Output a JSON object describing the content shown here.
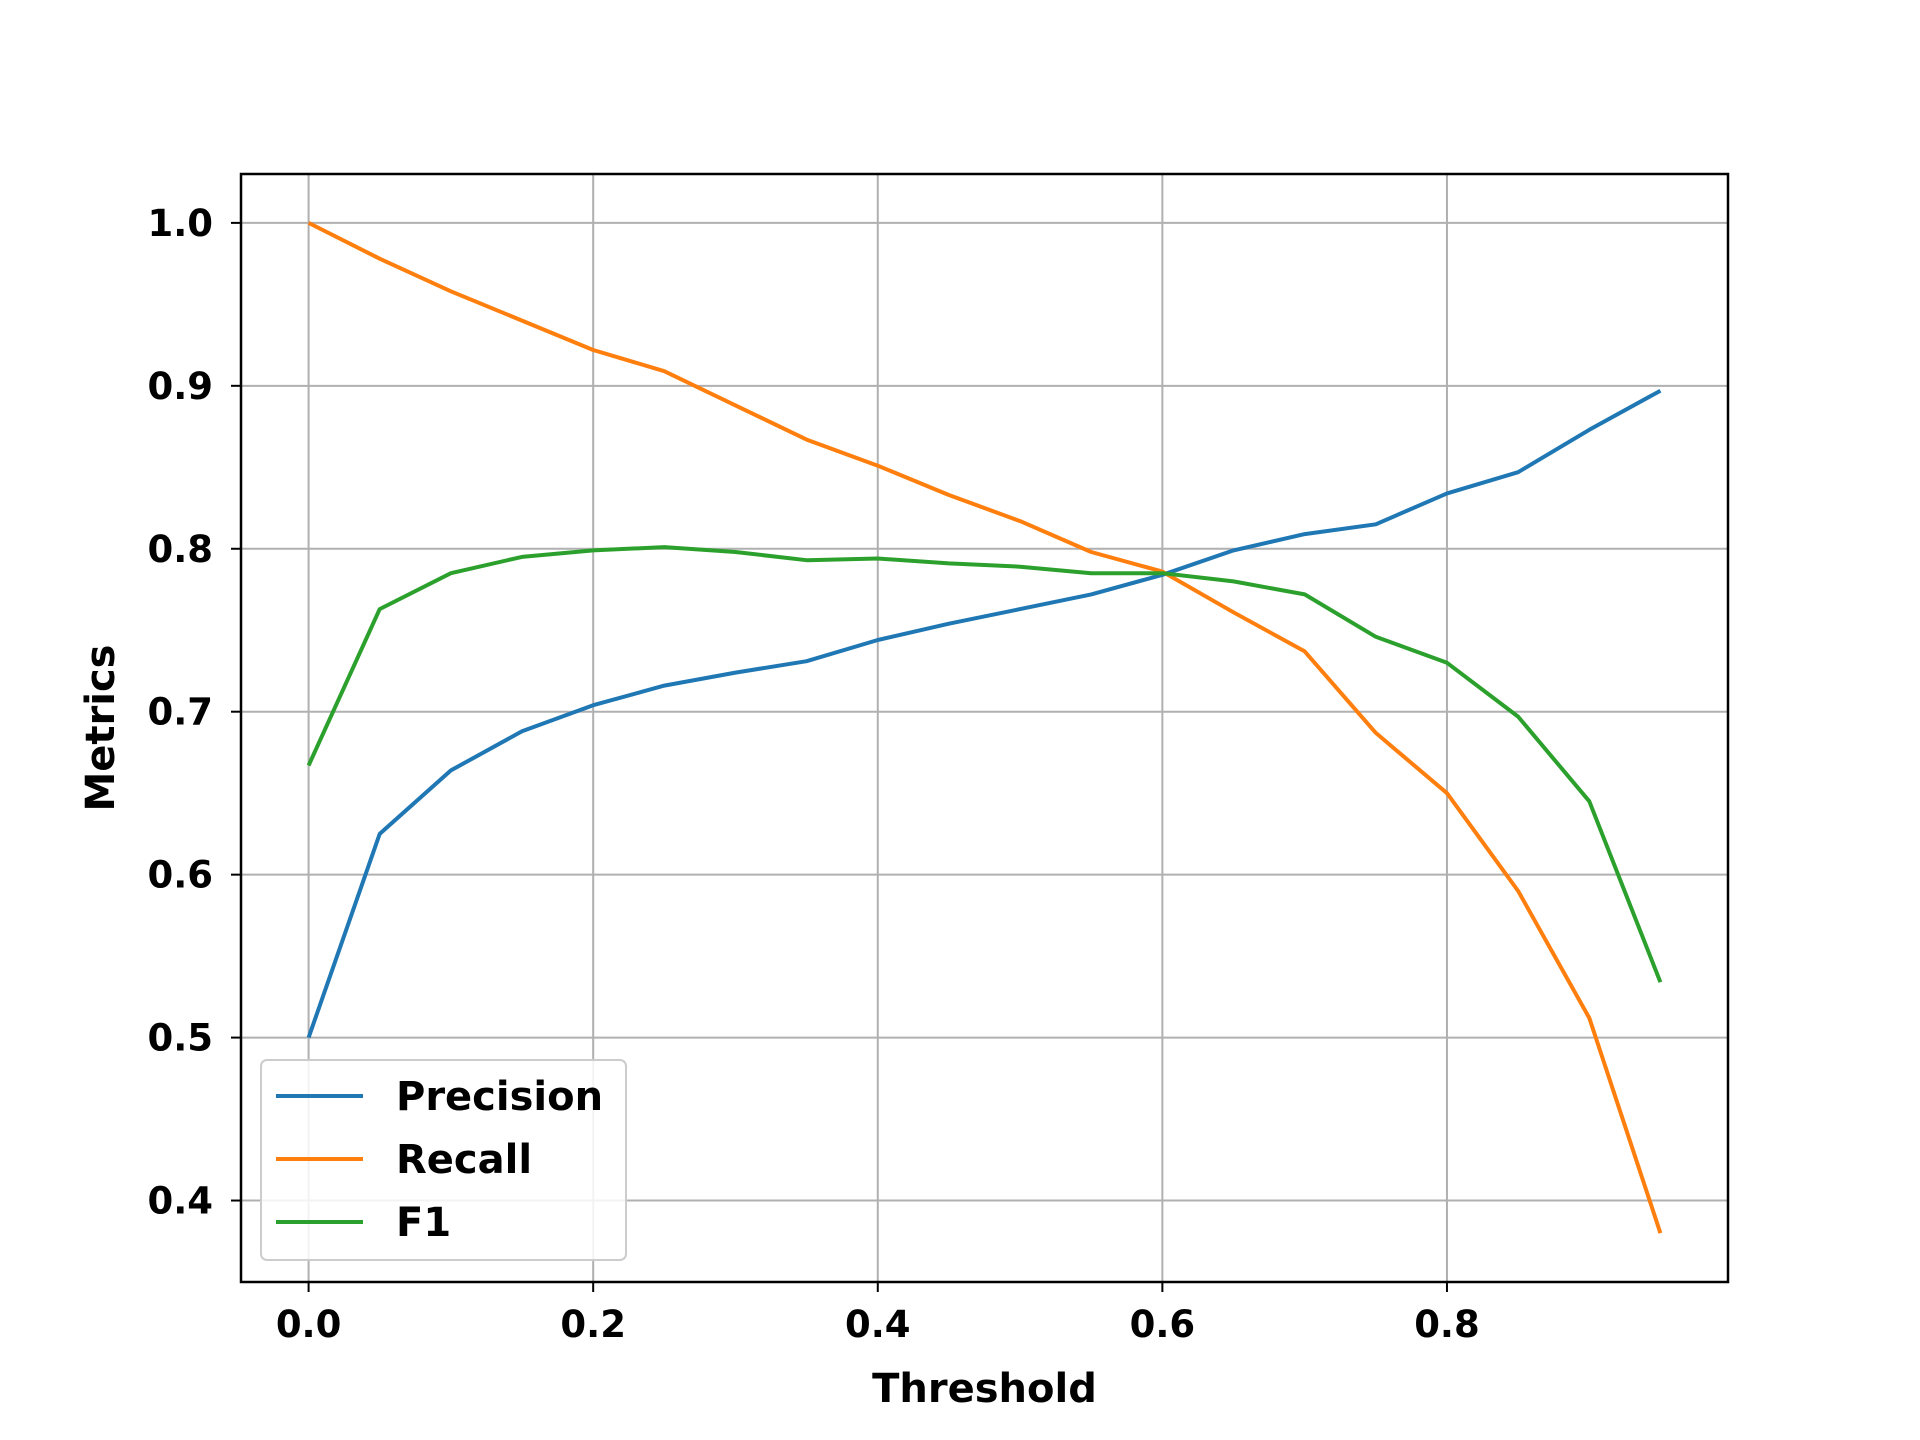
{
  "chart_data": {
    "type": "line",
    "title": "",
    "xlabel": "Threshold",
    "ylabel": "Metrics",
    "xlim": [
      -0.0475,
      0.9975
    ],
    "ylim": [
      0.35,
      1.03
    ],
    "xticks": [
      0.0,
      0.2,
      0.4,
      0.6,
      0.8
    ],
    "xtick_labels": [
      "0.0",
      "0.2",
      "0.4",
      "0.6",
      "0.8"
    ],
    "yticks": [
      0.4,
      0.5,
      0.6,
      0.7,
      0.8,
      0.9,
      1.0
    ],
    "ytick_labels": [
      "0.4",
      "0.5",
      "0.6",
      "0.7",
      "0.8",
      "0.9",
      "1.0"
    ],
    "grid": true,
    "legend_position": "lower-left",
    "x": [
      0.0,
      0.05,
      0.1,
      0.15,
      0.2,
      0.25,
      0.3,
      0.35,
      0.4,
      0.45,
      0.5,
      0.55,
      0.6,
      0.65,
      0.7,
      0.75,
      0.8,
      0.85,
      0.9,
      0.95
    ],
    "series": [
      {
        "name": "Precision",
        "color": "#1f77b4",
        "values": [
          0.5,
          0.625,
          0.664,
          0.688,
          0.704,
          0.716,
          0.724,
          0.731,
          0.744,
          0.754,
          0.763,
          0.772,
          0.784,
          0.799,
          0.809,
          0.815,
          0.834,
          0.847,
          0.873,
          0.897
        ]
      },
      {
        "name": "Recall",
        "color": "#ff7f0e",
        "values": [
          1.0,
          0.978,
          0.958,
          0.94,
          0.922,
          0.909,
          0.888,
          0.867,
          0.851,
          0.833,
          0.817,
          0.798,
          0.786,
          0.761,
          0.737,
          0.687,
          0.65,
          0.59,
          0.512,
          0.38
        ]
      },
      {
        "name": "F1",
        "color": "#2ca02c",
        "values": [
          0.667,
          0.763,
          0.785,
          0.795,
          0.799,
          0.801,
          0.798,
          0.793,
          0.794,
          0.791,
          0.789,
          0.785,
          0.785,
          0.78,
          0.772,
          0.746,
          0.73,
          0.697,
          0.645,
          0.534
        ]
      }
    ]
  }
}
